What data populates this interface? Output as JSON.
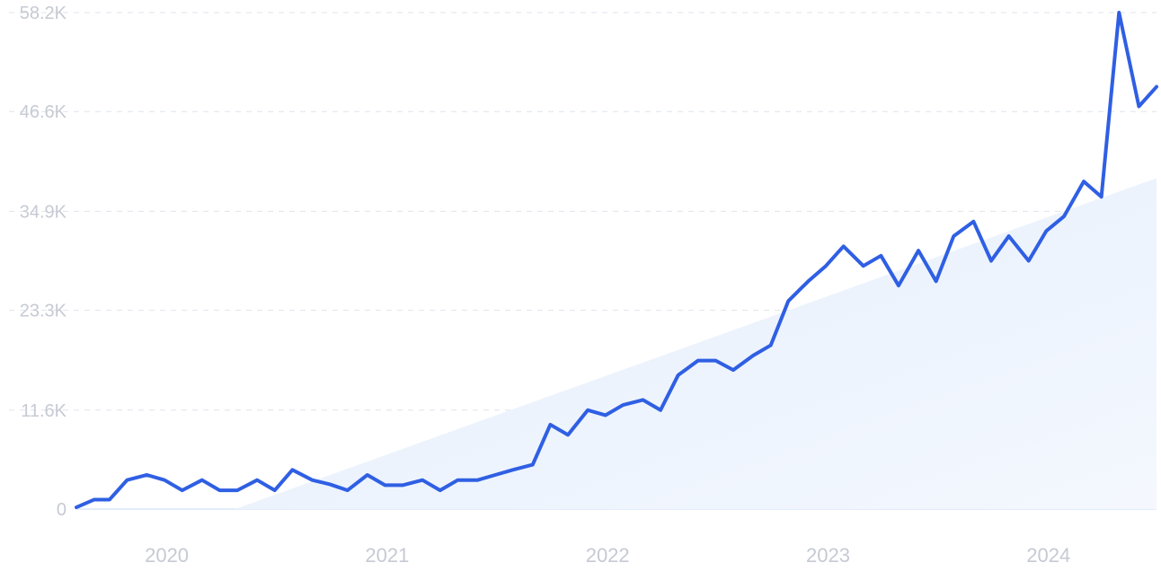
{
  "chart_data": {
    "type": "line",
    "title": "",
    "xlabel": "",
    "ylabel": "",
    "x_ticks": [
      {
        "label": "2020",
        "t": 2020.0
      },
      {
        "label": "2021",
        "t": 2021.0
      },
      {
        "label": "2022",
        "t": 2022.0
      },
      {
        "label": "2023",
        "t": 2023.0
      },
      {
        "label": "2024",
        "t": 2024.0
      }
    ],
    "y_ticks": [
      {
        "label": "0",
        "v": 0
      },
      {
        "label": "11.6K",
        "v": 11600
      },
      {
        "label": "23.3K",
        "v": 23300
      },
      {
        "label": "34.9K",
        "v": 34900
      },
      {
        "label": "46.6K",
        "v": 46600
      },
      {
        "label": "58.2K",
        "v": 58200
      }
    ],
    "xlim": [
      2019.6,
      2024.5
    ],
    "ylim": [
      0,
      58200
    ],
    "grid": true,
    "series": [
      {
        "color": "#2f5fe3",
        "points": [
          [
            2019.6,
            200
          ],
          [
            2019.68,
            1100
          ],
          [
            2019.75,
            1100
          ],
          [
            2019.83,
            3400
          ],
          [
            2019.92,
            4000
          ],
          [
            2020.0,
            3400
          ],
          [
            2020.08,
            2200
          ],
          [
            2020.17,
            3400
          ],
          [
            2020.25,
            2200
          ],
          [
            2020.33,
            2200
          ],
          [
            2020.42,
            3400
          ],
          [
            2020.5,
            2200
          ],
          [
            2020.58,
            4600
          ],
          [
            2020.67,
            3400
          ],
          [
            2020.75,
            2900
          ],
          [
            2020.83,
            2200
          ],
          [
            2020.92,
            4000
          ],
          [
            2021.0,
            2800
          ],
          [
            2021.08,
            2800
          ],
          [
            2021.17,
            3400
          ],
          [
            2021.25,
            2200
          ],
          [
            2021.33,
            3400
          ],
          [
            2021.42,
            3400
          ],
          [
            2021.5,
            4000
          ],
          [
            2021.58,
            4600
          ],
          [
            2021.67,
            5200
          ],
          [
            2021.75,
            9900
          ],
          [
            2021.83,
            8700
          ],
          [
            2021.92,
            11600
          ],
          [
            2022.0,
            11000
          ],
          [
            2022.08,
            12200
          ],
          [
            2022.17,
            12800
          ],
          [
            2022.25,
            11600
          ],
          [
            2022.33,
            15700
          ],
          [
            2022.42,
            17400
          ],
          [
            2022.5,
            17400
          ],
          [
            2022.58,
            16300
          ],
          [
            2022.67,
            18000
          ],
          [
            2022.75,
            19200
          ],
          [
            2022.83,
            24400
          ],
          [
            2022.92,
            26700
          ],
          [
            2023.0,
            28500
          ],
          [
            2023.08,
            30800
          ],
          [
            2023.17,
            28500
          ],
          [
            2023.25,
            29700
          ],
          [
            2023.33,
            26200
          ],
          [
            2023.42,
            30300
          ],
          [
            2023.5,
            26700
          ],
          [
            2023.58,
            32000
          ],
          [
            2023.67,
            33700
          ],
          [
            2023.75,
            29100
          ],
          [
            2023.83,
            32000
          ],
          [
            2023.92,
            29100
          ],
          [
            2024.0,
            32600
          ],
          [
            2024.08,
            34300
          ],
          [
            2024.17,
            38400
          ],
          [
            2024.25,
            36600
          ],
          [
            2024.33,
            58200
          ],
          [
            2024.42,
            47200
          ],
          [
            2024.5,
            49500
          ]
        ]
      }
    ],
    "trend": {
      "color": "#e6effc",
      "start": [
        2020.32,
        0
      ],
      "end": [
        2024.5,
        38800
      ]
    }
  }
}
